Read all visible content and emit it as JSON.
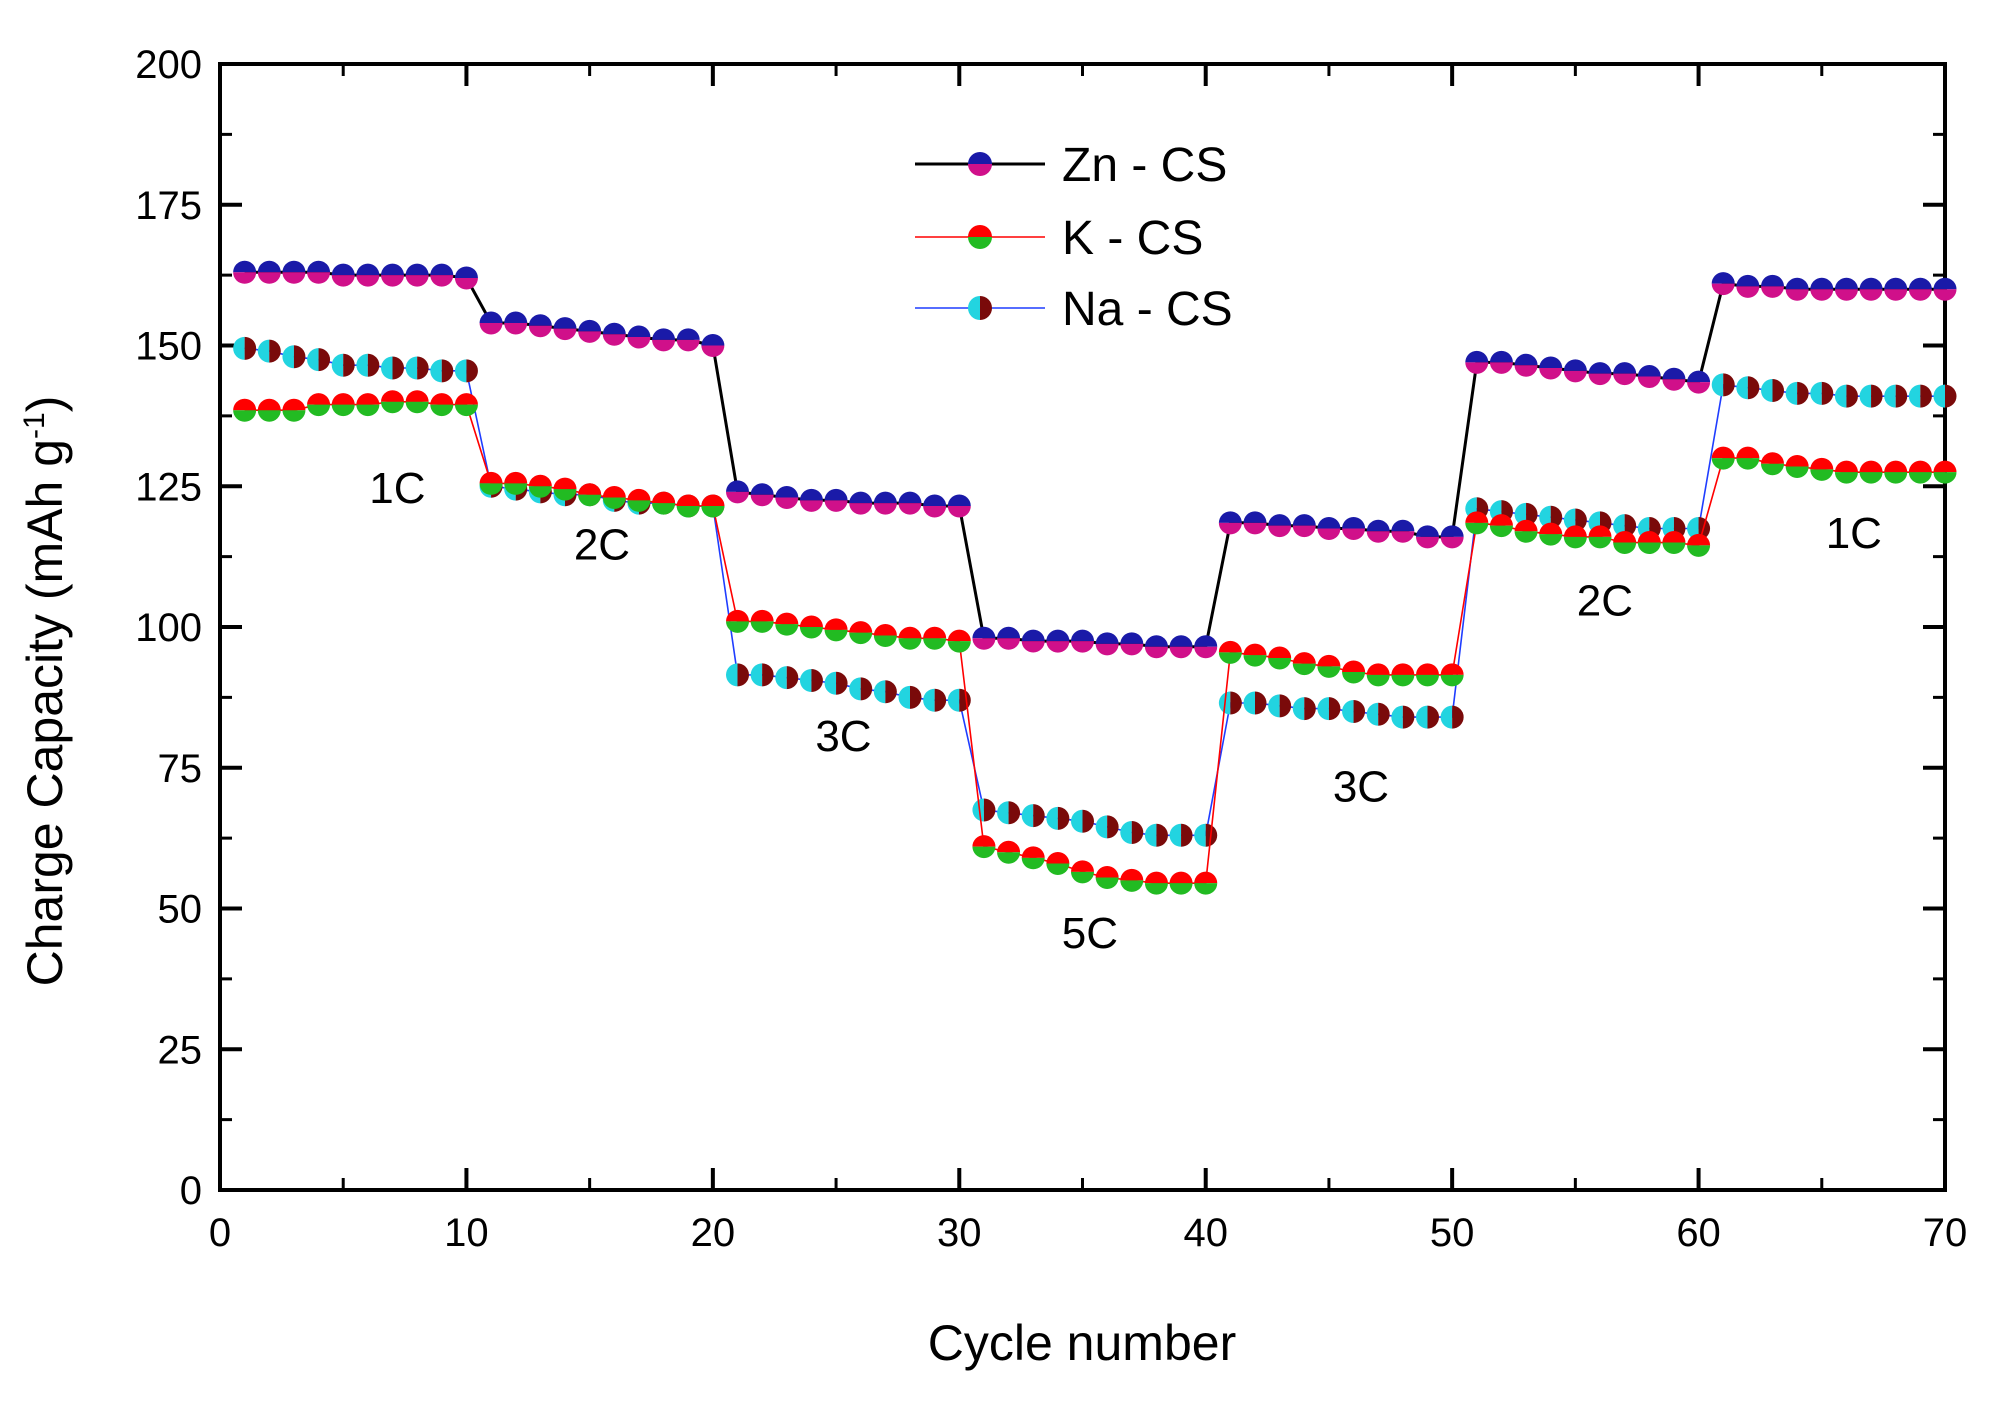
{
  "chart_data": {
    "type": "line",
    "title": "",
    "xlabel": "Cycle number",
    "ylabel": "Charge Capacity (mAh g",
    "ylabel_sup": "-1",
    "ylabel_close": ")",
    "xlim": [
      0,
      70
    ],
    "ylim": [
      0,
      200
    ],
    "xticks": [
      "0",
      "10",
      "20",
      "30",
      "40",
      "50",
      "60",
      "70"
    ],
    "yticks": [
      "0",
      "25",
      "50",
      "75",
      "100",
      "125",
      "150",
      "175",
      "200"
    ],
    "grid": false,
    "legend_position": "top-center",
    "x": [
      1,
      2,
      3,
      4,
      5,
      6,
      7,
      8,
      9,
      10,
      11,
      12,
      13,
      14,
      15,
      16,
      17,
      18,
      19,
      20,
      21,
      22,
      23,
      24,
      25,
      26,
      27,
      28,
      29,
      30,
      31,
      32,
      33,
      34,
      35,
      36,
      37,
      38,
      39,
      40,
      41,
      42,
      43,
      44,
      45,
      46,
      47,
      48,
      49,
      50,
      51,
      52,
      53,
      54,
      55,
      56,
      57,
      58,
      59,
      60,
      61,
      62,
      63,
      64,
      65,
      66,
      67,
      68,
      69,
      70
    ],
    "series": [
      {
        "name": "Zn - CS",
        "line_color": "#000000",
        "marker_colors": [
          "#1a1aa8",
          "#d0108a"
        ],
        "values": [
          163,
          163,
          163,
          163,
          162.5,
          162.5,
          162.5,
          162.5,
          162.5,
          162,
          154,
          154,
          153.5,
          153,
          152.5,
          152,
          151.5,
          151,
          151,
          150,
          124,
          123.5,
          123,
          122.5,
          122.5,
          122,
          122,
          122,
          121.5,
          121.5,
          98,
          98,
          97.5,
          97.5,
          97.5,
          97,
          97,
          96.5,
          96.5,
          96.5,
          118.5,
          118.5,
          118,
          118,
          117.5,
          117.5,
          117,
          117,
          116,
          116,
          147,
          147,
          146.5,
          146,
          145.5,
          145,
          145,
          144.5,
          144,
          143.5,
          161,
          160.5,
          160.5,
          160,
          160,
          160,
          160,
          160,
          160,
          160
        ]
      },
      {
        "name": "K - CS",
        "line_color": "#ff0000",
        "marker_colors": [
          "#ff0000",
          "#22bb22"
        ],
        "values": [
          138.5,
          138.5,
          138.5,
          139.5,
          139.5,
          139.5,
          140,
          140,
          139.5,
          139.5,
          125.5,
          125.5,
          125,
          124.5,
          123.5,
          123,
          122.5,
          122,
          121.5,
          121.5,
          101,
          101,
          100.5,
          100,
          99.5,
          99,
          98.5,
          98,
          98,
          97.5,
          61,
          60,
          59,
          58,
          56.5,
          55.5,
          55,
          54.5,
          54.5,
          54.5,
          95.5,
          95,
          94.5,
          93.5,
          93,
          92,
          91.5,
          91.5,
          91.5,
          91.5,
          118.5,
          118,
          117,
          116.5,
          116,
          116,
          115,
          115,
          115,
          114.5,
          130,
          130,
          129,
          128.5,
          128,
          127.5,
          127.5,
          127.5,
          127.5,
          127.5
        ]
      },
      {
        "name": "Na - CS",
        "line_color": "#1f3dff",
        "marker_colors": [
          "#22d4e0",
          "#7a0a0a"
        ],
        "values": [
          149.5,
          149,
          148,
          147.5,
          146.5,
          146.5,
          146,
          146,
          145.5,
          145.5,
          125,
          124.5,
          124,
          123.5,
          123.5,
          122.5,
          122,
          122,
          121.5,
          121.5,
          91.5,
          91.5,
          91,
          90.5,
          90,
          89,
          88.5,
          87.5,
          87,
          87,
          67.5,
          67,
          66.5,
          66,
          65.5,
          64.5,
          63.5,
          63,
          63,
          63,
          86.5,
          86.5,
          86,
          85.5,
          85.5,
          85,
          84.5,
          84,
          84,
          84,
          121,
          120.5,
          120,
          119.5,
          119,
          118.5,
          118,
          117.5,
          117.5,
          117.5,
          143,
          142.5,
          142,
          141.5,
          141.5,
          141,
          141,
          141,
          141,
          141
        ]
      }
    ],
    "annotations": [
      {
        "text": "1C",
        "x": 7.2,
        "y": 122
      },
      {
        "text": "2C",
        "x": 15.5,
        "y": 112
      },
      {
        "text": "3C",
        "x": 25.3,
        "y": 78
      },
      {
        "text": "5C",
        "x": 35.3,
        "y": 43
      },
      {
        "text": "3C",
        "x": 46.3,
        "y": 69
      },
      {
        "text": "2C",
        "x": 56.2,
        "y": 102
      },
      {
        "text": "1C",
        "x": 66.3,
        "y": 114
      }
    ]
  }
}
